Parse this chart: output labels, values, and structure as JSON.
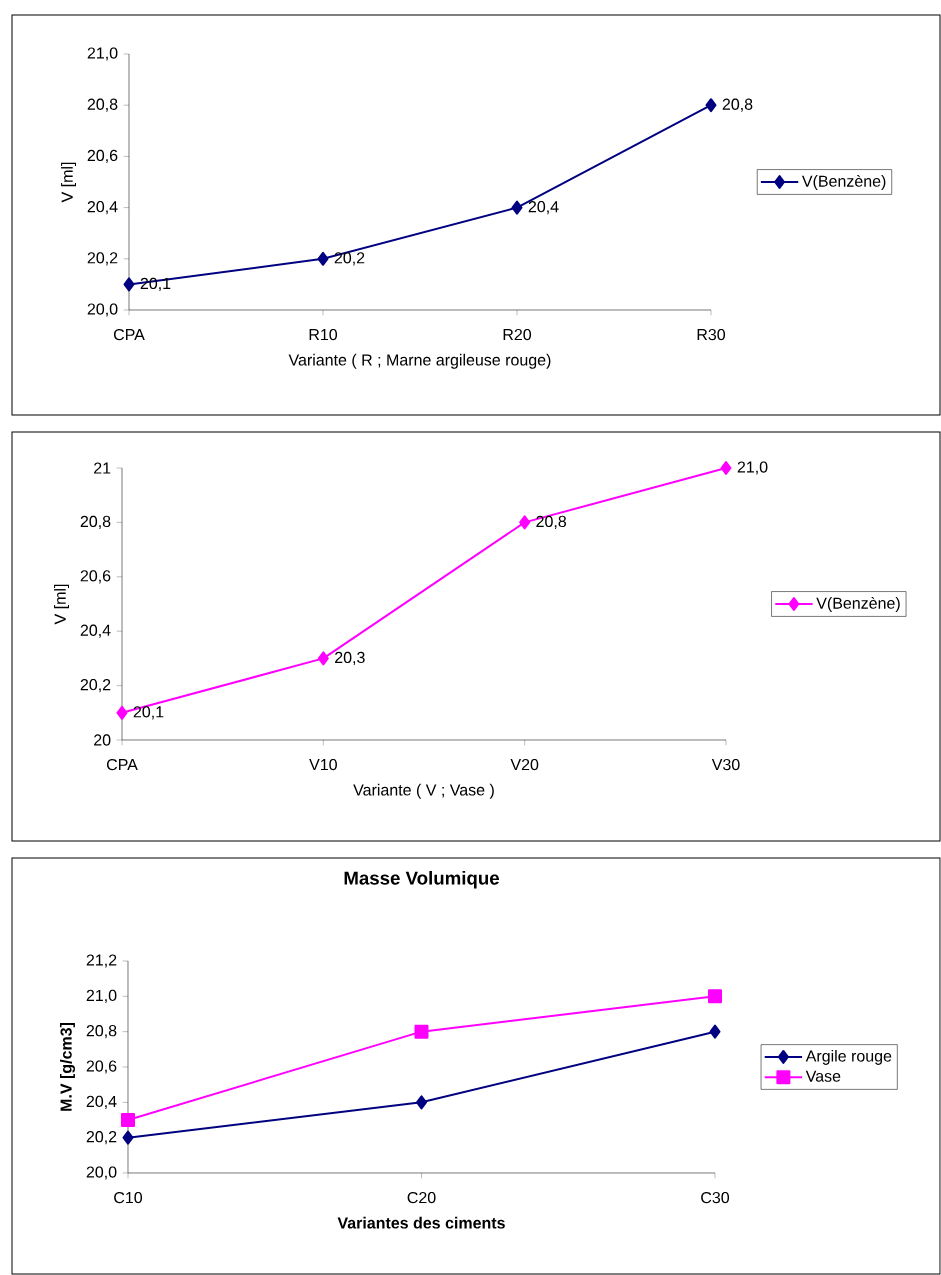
{
  "chart_data": [
    {
      "type": "line",
      "xlabel": "Variante ( R ; Marne argileuse rouge)",
      "ylabel": "V [ml]",
      "categories": [
        "CPA",
        "R10",
        "R20",
        "R30"
      ],
      "series": [
        {
          "name": "V(Benzène)",
          "color": "#000080",
          "values": [
            20.1,
            20.2,
            20.4,
            20.8
          ],
          "value_labels": [
            "20,1",
            "20,2",
            "20,4",
            "20,8"
          ]
        }
      ],
      "ylim": [
        20.0,
        21.0
      ],
      "yticks": [
        {
          "value": 20.0,
          "label": "20,0"
        },
        {
          "value": 20.2,
          "label": "20,2"
        },
        {
          "value": 20.4,
          "label": "20,4"
        },
        {
          "value": 20.6,
          "label": "20,6"
        },
        {
          "value": 20.8,
          "label": "20,8"
        },
        {
          "value": 21.0,
          "label": "21,0"
        }
      ],
      "legend": "right",
      "marker": "diamond",
      "grid": false
    },
    {
      "type": "line",
      "xlabel": "Variante ( V ; Vase )",
      "ylabel": "V [ml]",
      "categories": [
        "CPA",
        "V10",
        "V20",
        "V30"
      ],
      "series": [
        {
          "name": "V(Benzène)",
          "color": "#ff00ff",
          "values": [
            20.1,
            20.3,
            20.8,
            21.0
          ],
          "value_labels": [
            "20,1",
            "20,3",
            "20,8",
            "21,0"
          ]
        }
      ],
      "ylim": [
        20,
        21
      ],
      "yticks": [
        20,
        {
          "value": 20.2,
          "label": "20,2"
        },
        {
          "value": 20.4,
          "label": "20,4"
        },
        {
          "value": 20.6,
          "label": "20,6"
        },
        {
          "value": 20.8,
          "label": "20,8"
        },
        21
      ],
      "legend": "right",
      "marker": "diamond",
      "grid": false
    },
    {
      "type": "line",
      "title": "Masse Volumique",
      "xlabel": "Variantes des ciments",
      "ylabel": "M.V [g/cm3]",
      "categories": [
        "C10",
        "C20",
        "C30"
      ],
      "series": [
        {
          "name": "Argile rouge",
          "color": "#000080",
          "values": [
            20.2,
            20.4,
            20.8
          ],
          "marker": "diamond"
        },
        {
          "name": "Vase",
          "color": "#ff00ff",
          "values": [
            20.3,
            20.8,
            21.0
          ],
          "marker": "square"
        }
      ],
      "ylim": [
        20.0,
        21.2
      ],
      "yticks": [
        {
          "value": 20.0,
          "label": "20,0"
        },
        {
          "value": 20.2,
          "label": "20,2"
        },
        {
          "value": 20.4,
          "label": "20,4"
        },
        {
          "value": 20.6,
          "label": "20,6"
        },
        {
          "value": 20.8,
          "label": "20,8"
        },
        {
          "value": 21.0,
          "label": "21,0"
        },
        {
          "value": 21.2,
          "label": "21,2"
        }
      ],
      "legend": "right",
      "grid": false
    }
  ]
}
